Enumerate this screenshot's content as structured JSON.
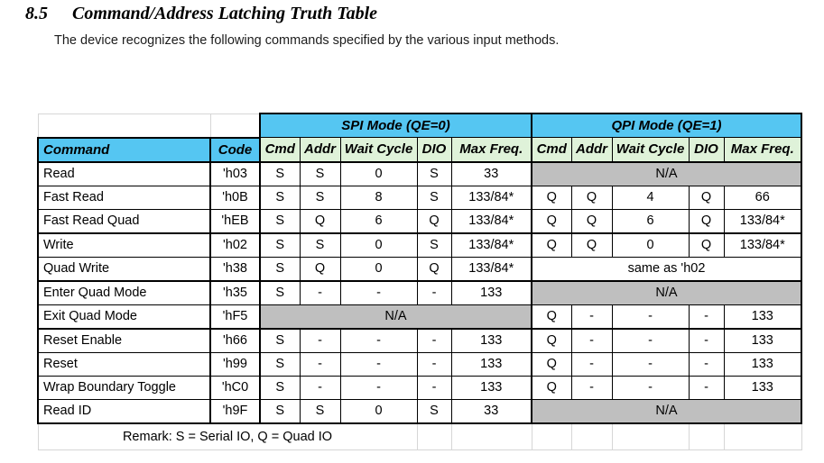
{
  "page": {
    "section_number": "8.5",
    "section_title": "Command/Address Latching Truth Table",
    "intro": "The device recognizes the following commands specified by the various input methods."
  },
  "table": {
    "colors": {
      "header_blue": "#55c6f2",
      "header_green": "#dff2d9",
      "na_gray": "#bfbfbf",
      "gridline_gray": "#d6d6d6",
      "border_black": "#000000"
    },
    "mode_headers": [
      "SPI Mode (QE=0)",
      "QPI Mode (QE=1)"
    ],
    "column_headers": [
      "Command",
      "Code",
      "Cmd",
      "Addr",
      "Wait Cycle",
      "DIO",
      "Max Freq.",
      "Cmd",
      "Addr",
      "Wait Cycle",
      "DIO",
      "Max Freq."
    ],
    "rows": [
      {
        "command": "Read",
        "code": "'h03",
        "spi": [
          "S",
          "S",
          "0",
          "S",
          "33"
        ],
        "qpi": {
          "span": "N/A",
          "fill": "gray"
        },
        "group_end": false
      },
      {
        "command": "Fast Read",
        "code": "'h0B",
        "spi": [
          "S",
          "S",
          "8",
          "S",
          "133/84*"
        ],
        "qpi": [
          "Q",
          "Q",
          "4",
          "Q",
          "66"
        ],
        "group_end": false
      },
      {
        "command": "Fast Read Quad",
        "code": "'hEB",
        "spi": [
          "S",
          "Q",
          "6",
          "Q",
          "133/84*"
        ],
        "qpi": [
          "Q",
          "Q",
          "6",
          "Q",
          "133/84*"
        ],
        "group_end": true
      },
      {
        "command": "Write",
        "code": "'h02",
        "spi": [
          "S",
          "S",
          "0",
          "S",
          "133/84*"
        ],
        "qpi": [
          "Q",
          "Q",
          "0",
          "Q",
          "133/84*"
        ],
        "group_end": false
      },
      {
        "command": "Quad Write",
        "code": "'h38",
        "spi": [
          "S",
          "Q",
          "0",
          "Q",
          "133/84*"
        ],
        "qpi": {
          "span": "same as 'h02",
          "fill": "white"
        },
        "group_end": true
      },
      {
        "command": "Enter Quad Mode",
        "code": "'h35",
        "spi": [
          "S",
          "-",
          "-",
          "-",
          "133"
        ],
        "qpi": {
          "span": "N/A",
          "fill": "gray"
        },
        "group_end": false
      },
      {
        "command": "Exit Quad Mode",
        "code": "'hF5",
        "spi": {
          "span": "N/A",
          "fill": "gray"
        },
        "qpi": [
          "Q",
          "-",
          "-",
          "-",
          "133"
        ],
        "group_end": true
      },
      {
        "command": "Reset Enable",
        "code": "'h66",
        "spi": [
          "S",
          "-",
          "-",
          "-",
          "133"
        ],
        "qpi": [
          "Q",
          "-",
          "-",
          "-",
          "133"
        ],
        "group_end": false
      },
      {
        "command": "Reset",
        "code": "'h99",
        "spi": [
          "S",
          "-",
          "-",
          "-",
          "133"
        ],
        "qpi": [
          "Q",
          "-",
          "-",
          "-",
          "133"
        ],
        "group_end": false
      },
      {
        "command": "Wrap Boundary Toggle",
        "code": "'hC0",
        "spi": [
          "S",
          "-",
          "-",
          "-",
          "133"
        ],
        "qpi": [
          "Q",
          "-",
          "-",
          "-",
          "133"
        ],
        "group_end": false
      },
      {
        "command": "Read ID",
        "code": "'h9F",
        "spi": [
          "S",
          "S",
          "0",
          "S",
          "33"
        ],
        "qpi": {
          "span": "N/A",
          "fill": "gray"
        },
        "group_end": true
      }
    ],
    "remark": "Remark: S = Serial IO, Q = Quad IO"
  }
}
